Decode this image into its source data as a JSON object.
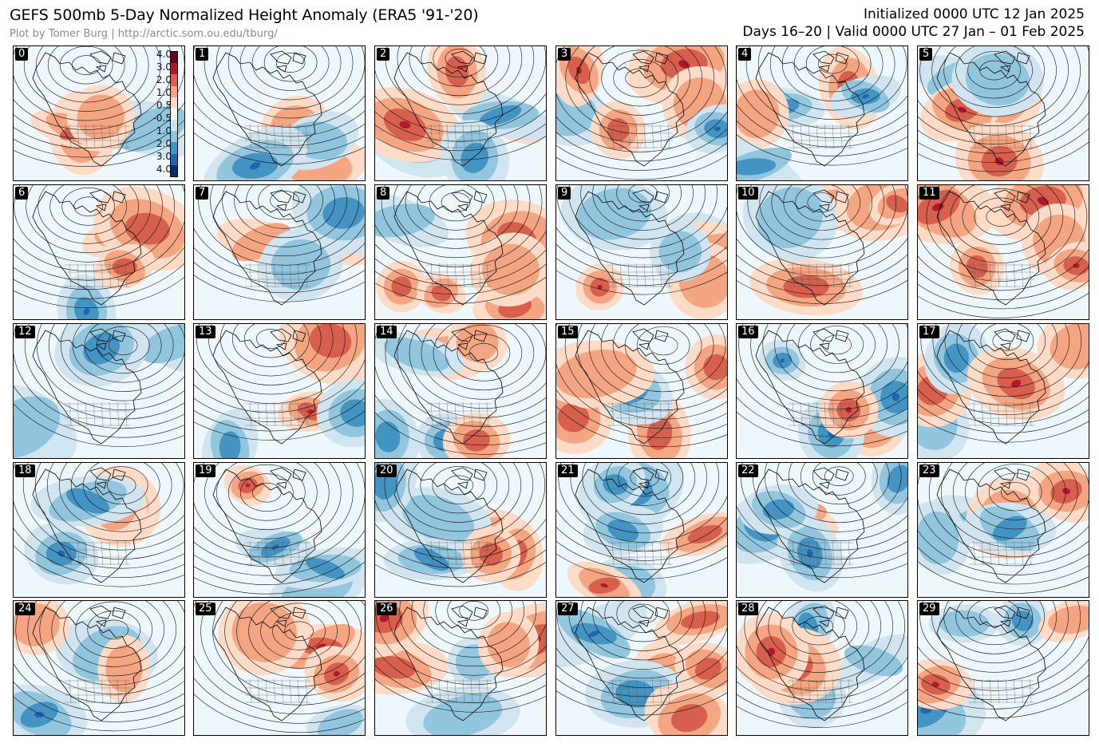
{
  "header": {
    "title": "GEFS 500mb 5-Day Normalized Height Anomaly (ERA5 '91-'20)",
    "credit": "Plot by Tomer Burg | http://arctic.som.ou.edu/tburg/",
    "initialized": "Initialized 0000 UTC 12 Jan 2025",
    "valid": "Days 16–20 | Valid 0000 UTC 27 Jan – 01 Feb 2025"
  },
  "colorbar": {
    "labels": [
      "4.0",
      "3.0",
      "2.0",
      "1.0",
      "0.5",
      "-0.5",
      "1.0",
      "2.0",
      "3.0",
      "4.0"
    ],
    "colors": [
      "#67001f",
      "#b2182b",
      "#d6604d",
      "#f4a582",
      "#fddbc7",
      "#ffffff",
      "#d1e5f0",
      "#92c5de",
      "#4393c3",
      "#2166ac",
      "#053061"
    ]
  },
  "panels": [
    {
      "id": "0"
    },
    {
      "id": "1"
    },
    {
      "id": "2"
    },
    {
      "id": "3"
    },
    {
      "id": "4"
    },
    {
      "id": "5"
    },
    {
      "id": "6"
    },
    {
      "id": "7"
    },
    {
      "id": "8"
    },
    {
      "id": "9"
    },
    {
      "id": "10"
    },
    {
      "id": "11"
    },
    {
      "id": "12"
    },
    {
      "id": "13"
    },
    {
      "id": "14"
    },
    {
      "id": "15"
    },
    {
      "id": "16"
    },
    {
      "id": "17"
    },
    {
      "id": "18"
    },
    {
      "id": "19"
    },
    {
      "id": "20"
    },
    {
      "id": "21"
    },
    {
      "id": "22"
    },
    {
      "id": "23"
    },
    {
      "id": "24"
    },
    {
      "id": "25"
    },
    {
      "id": "26"
    },
    {
      "id": "27"
    },
    {
      "id": "28"
    },
    {
      "id": "29"
    }
  ]
}
